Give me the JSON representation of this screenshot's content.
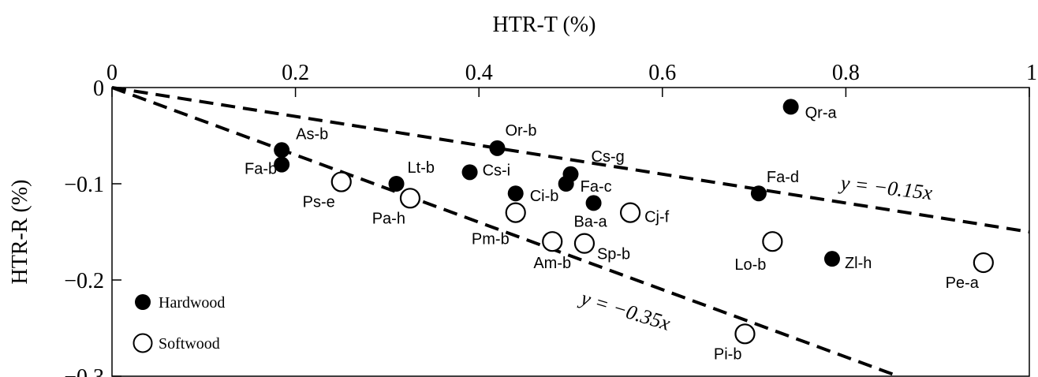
{
  "chart_data": {
    "type": "scatter",
    "title": "",
    "xlabel": "HTR-T  (%)",
    "ylabel": "HTR-R  (%)",
    "xlim": [
      0,
      1
    ],
    "ylim": [
      -0.3,
      0
    ],
    "x_ticks": [
      {
        "value": 0,
        "label": "0"
      },
      {
        "value": 0.2,
        "label": "0.2"
      },
      {
        "value": 0.4,
        "label": "0.4"
      },
      {
        "value": 0.6,
        "label": "0.6"
      },
      {
        "value": 0.8,
        "label": "0.8"
      },
      {
        "value": 1,
        "label": "1"
      }
    ],
    "y_ticks": [
      {
        "value": 0,
        "label": "0"
      },
      {
        "value": -0.1,
        "label": "−0.1"
      },
      {
        "value": -0.2,
        "label": "−0.2"
      },
      {
        "value": -0.3,
        "label": "−0.3"
      }
    ],
    "x_axis_position": "top",
    "grid": false,
    "legend": "bottom-left",
    "series": [
      {
        "name": "Hardwood",
        "marker": "filled-circle",
        "color": "#000000",
        "points": [
          {
            "label": "As-b",
            "x": 0.185,
            "y": -0.065
          },
          {
            "label": "Fa-b",
            "x": 0.185,
            "y": -0.08
          },
          {
            "label": "Lt-b",
            "x": 0.31,
            "y": -0.1
          },
          {
            "label": "Cs-i",
            "x": 0.39,
            "y": -0.088
          },
          {
            "label": "Or-b",
            "x": 0.42,
            "y": -0.063
          },
          {
            "label": "Ci-b",
            "x": 0.44,
            "y": -0.11
          },
          {
            "label": "Cs-g",
            "x": 0.5,
            "y": -0.09
          },
          {
            "label": "Fa-c",
            "x": 0.495,
            "y": -0.1
          },
          {
            "label": "Ba-a",
            "x": 0.525,
            "y": -0.12
          },
          {
            "label": "Fa-d",
            "x": 0.705,
            "y": -0.11
          },
          {
            "label": "Qr-a",
            "x": 0.74,
            "y": -0.02
          },
          {
            "label": "Zl-h",
            "x": 0.785,
            "y": -0.178
          }
        ]
      },
      {
        "name": "Softwood",
        "marker": "open-circle",
        "color": "#000000",
        "points": [
          {
            "label": "Ps-e",
            "x": 0.25,
            "y": -0.098
          },
          {
            "label": "Pa-h",
            "x": 0.325,
            "y": -0.115
          },
          {
            "label": "Pm-b",
            "x": 0.44,
            "y": -0.13
          },
          {
            "label": "Am-b",
            "x": 0.48,
            "y": -0.16
          },
          {
            "label": "Sp-b",
            "x": 0.515,
            "y": -0.162
          },
          {
            "label": "Cj-f",
            "x": 0.565,
            "y": -0.13
          },
          {
            "label": "Lo-b",
            "x": 0.72,
            "y": -0.16
          },
          {
            "label": "Pi-b",
            "x": 0.69,
            "y": -0.256
          },
          {
            "label": "Pe-a",
            "x": 0.95,
            "y": -0.182
          }
        ]
      }
    ],
    "reference_lines": [
      {
        "slope": -0.15,
        "label": "y = −0.15x",
        "style": "dashed"
      },
      {
        "slope": -0.35,
        "label": "y = −0.35x",
        "style": "dashed"
      }
    ]
  }
}
